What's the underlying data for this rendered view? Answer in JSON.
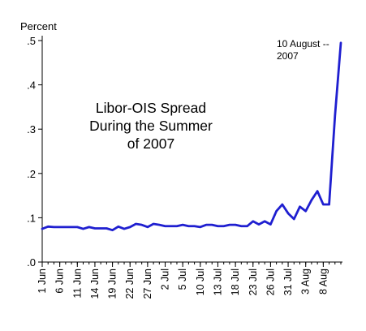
{
  "chart_data": {
    "type": "line",
    "title": "Libor-OIS Spread During the Summer of 2007",
    "title_lines": [
      "Libor-OIS Spread",
      "During the Summer",
      "of 2007"
    ],
    "ylabel": "Percent",
    "xlabel": "",
    "ylim": [
      0,
      0.5
    ],
    "y_ticks": [
      {
        "value": 0.0,
        "label": ".0"
      },
      {
        "value": 0.1,
        "label": ".1"
      },
      {
        "value": 0.2,
        "label": ".2"
      },
      {
        "value": 0.3,
        "label": ".3"
      },
      {
        "value": 0.4,
        "label": ".4"
      },
      {
        "value": 0.5,
        "label": ".5"
      }
    ],
    "grid": false,
    "legend": "none",
    "line_color": "#1f1fd0",
    "x_tick_labels": [
      "1 Jun",
      "6 Jun",
      "11 Jun",
      "14 Jun",
      "19 Jun",
      "22 Jun",
      "27 Jun",
      "2 Jul",
      "5 Jul",
      "10 Jul",
      "13 Jul",
      "18 Jul",
      "23 Jul",
      "26 Jul",
      "31 Jul",
      "3 Aug",
      "8 Aug"
    ],
    "annotation": {
      "lines": [
        "10 August --",
        "2007"
      ],
      "x_index": 49
    },
    "series": [
      {
        "values": [
          0.075,
          0.08,
          0.079,
          0.079,
          0.079,
          0.079,
          0.079,
          0.075,
          0.079,
          0.076,
          0.076,
          0.076,
          0.072,
          0.08,
          0.075,
          0.079,
          0.086,
          0.084,
          0.079,
          0.086,
          0.084,
          0.081,
          0.081,
          0.081,
          0.084,
          0.081,
          0.081,
          0.079,
          0.084,
          0.084,
          0.081,
          0.081,
          0.084,
          0.084,
          0.081,
          0.081,
          0.092,
          0.085,
          0.092,
          0.085,
          0.115,
          0.13,
          0.11,
          0.097,
          0.125,
          0.115,
          0.14,
          0.16,
          0.13,
          0.13,
          0.33,
          0.495
        ]
      }
    ]
  }
}
